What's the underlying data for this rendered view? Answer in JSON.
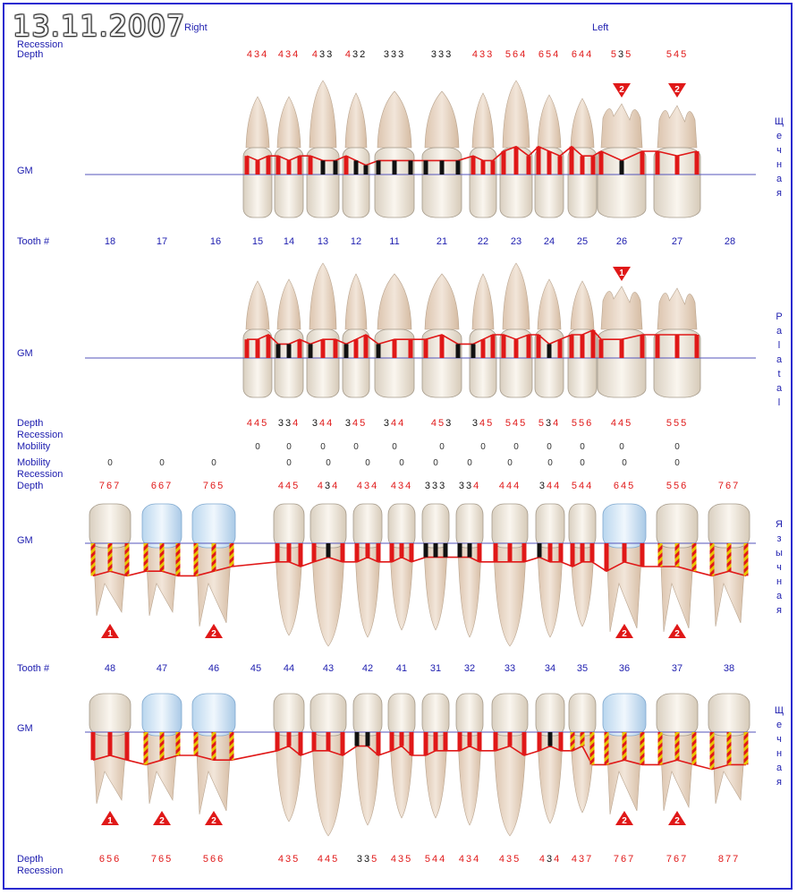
{
  "date": "13.11.2007",
  "header": {
    "right": "Right",
    "left": "Left"
  },
  "labels": {
    "recession": "Recession",
    "depth": "Depth",
    "gm": "GM",
    "tooth": "Tooth #",
    "mobility": "Mobility"
  },
  "side_labels": {
    "upper_buccal": "Щечная",
    "upper_palatal": "Palatal",
    "lower_lingual": "Язычная",
    "lower_buccal": "Щечная"
  },
  "colors": {
    "accent": "#2020b0",
    "red": "#e01818",
    "gum": "#e01818"
  },
  "upper": {
    "teeth": [
      "18",
      "17",
      "16",
      "15",
      "14",
      "13",
      "12",
      "11",
      "21",
      "22",
      "23",
      "24",
      "25",
      "26",
      "27",
      "28"
    ],
    "buccal_depth": [
      {
        "t": "15",
        "v": "434",
        "c": [
          "r",
          "r",
          "r"
        ]
      },
      {
        "t": "14",
        "v": "434",
        "c": [
          "r",
          "r",
          "r"
        ]
      },
      {
        "t": "13",
        "v": "433",
        "c": [
          "r",
          "k",
          "k"
        ]
      },
      {
        "t": "12",
        "v": "432",
        "c": [
          "r",
          "k",
          "k"
        ]
      },
      {
        "t": "11",
        "v": "333",
        "c": [
          "k",
          "k",
          "k"
        ]
      },
      {
        "t": "21",
        "v": "333",
        "c": [
          "k",
          "k",
          "k"
        ]
      },
      {
        "t": "22",
        "v": "433",
        "c": [
          "r",
          "r",
          "r"
        ]
      },
      {
        "t": "23",
        "v": "564",
        "c": [
          "r",
          "r",
          "r"
        ]
      },
      {
        "t": "24",
        "v": "654",
        "c": [
          "r",
          "r",
          "r"
        ]
      },
      {
        "t": "25",
        "v": "644",
        "c": [
          "r",
          "r",
          "r"
        ]
      },
      {
        "t": "26",
        "v": "535",
        "c": [
          "r",
          "k",
          "r"
        ]
      },
      {
        "t": "27",
        "v": "545",
        "c": [
          "r",
          "r",
          "r"
        ]
      }
    ],
    "buccal_furcation": [
      {
        "t": "26",
        "v": "2"
      },
      {
        "t": "27",
        "v": "2"
      }
    ],
    "palatal_furcation": [
      {
        "t": "26",
        "v": "1"
      }
    ],
    "palatal_depth": [
      {
        "t": "15",
        "v": "445",
        "c": [
          "r",
          "r",
          "r"
        ]
      },
      {
        "t": "14",
        "v": "334",
        "c": [
          "k",
          "k",
          "r"
        ]
      },
      {
        "t": "13",
        "v": "344",
        "c": [
          "k",
          "r",
          "r"
        ]
      },
      {
        "t": "12",
        "v": "345",
        "c": [
          "k",
          "r",
          "r"
        ]
      },
      {
        "t": "11",
        "v": "344",
        "c": [
          "k",
          "r",
          "r"
        ]
      },
      {
        "t": "21",
        "v": "453",
        "c": [
          "r",
          "r",
          "k"
        ]
      },
      {
        "t": "22",
        "v": "345",
        "c": [
          "k",
          "r",
          "r"
        ]
      },
      {
        "t": "23",
        "v": "545",
        "c": [
          "r",
          "r",
          "r"
        ]
      },
      {
        "t": "24",
        "v": "534",
        "c": [
          "r",
          "k",
          "r"
        ]
      },
      {
        "t": "25",
        "v": "556",
        "c": [
          "r",
          "r",
          "r"
        ]
      },
      {
        "t": "26",
        "v": "445",
        "c": [
          "r",
          "r",
          "r"
        ]
      },
      {
        "t": "27",
        "v": "555",
        "c": [
          "r",
          "r",
          "r"
        ]
      }
    ],
    "mobility": [
      {
        "t": "15",
        "v": "0"
      },
      {
        "t": "14",
        "v": "0"
      },
      {
        "t": "13",
        "v": "0"
      },
      {
        "t": "12",
        "v": "0"
      },
      {
        "t": "11",
        "v": "0"
      },
      {
        "t": "21",
        "v": "0"
      },
      {
        "t": "22",
        "v": "0"
      },
      {
        "t": "23",
        "v": "0"
      },
      {
        "t": "24",
        "v": "0"
      },
      {
        "t": "25",
        "v": "0"
      },
      {
        "t": "26",
        "v": "0"
      },
      {
        "t": "27",
        "v": "0"
      }
    ]
  },
  "lower": {
    "teeth": [
      "48",
      "47",
      "46",
      "45",
      "44",
      "43",
      "42",
      "41",
      "31",
      "32",
      "33",
      "34",
      "35",
      "36",
      "37",
      "38"
    ],
    "mobility": [
      {
        "t": "48",
        "v": "0"
      },
      {
        "t": "47",
        "v": "0"
      },
      {
        "t": "46",
        "v": "0"
      },
      {
        "t": "44",
        "v": "0"
      },
      {
        "t": "43",
        "v": "0"
      },
      {
        "t": "42",
        "v": "0"
      },
      {
        "t": "41",
        "v": "0"
      },
      {
        "t": "31",
        "v": "0"
      },
      {
        "t": "32",
        "v": "0"
      },
      {
        "t": "33",
        "v": "0"
      },
      {
        "t": "34",
        "v": "0"
      },
      {
        "t": "35",
        "v": "0"
      },
      {
        "t": "36",
        "v": "0"
      },
      {
        "t": "37",
        "v": "0"
      }
    ],
    "lingual_depth": [
      {
        "t": "48",
        "v": "767",
        "c": [
          "r",
          "r",
          "r"
        ]
      },
      {
        "t": "47",
        "v": "667",
        "c": [
          "r",
          "r",
          "r"
        ]
      },
      {
        "t": "46",
        "v": "765",
        "c": [
          "r",
          "r",
          "r"
        ]
      },
      {
        "t": "44",
        "v": "445",
        "c": [
          "r",
          "r",
          "r"
        ]
      },
      {
        "t": "43",
        "v": "434",
        "c": [
          "r",
          "k",
          "r"
        ]
      },
      {
        "t": "42",
        "v": "434",
        "c": [
          "r",
          "r",
          "r"
        ]
      },
      {
        "t": "41",
        "v": "434",
        "c": [
          "r",
          "r",
          "r"
        ]
      },
      {
        "t": "31",
        "v": "333",
        "c": [
          "k",
          "k",
          "k"
        ]
      },
      {
        "t": "32",
        "v": "334",
        "c": [
          "k",
          "k",
          "r"
        ]
      },
      {
        "t": "33",
        "v": "444",
        "c": [
          "r",
          "r",
          "r"
        ]
      },
      {
        "t": "34",
        "v": "344",
        "c": [
          "k",
          "r",
          "r"
        ]
      },
      {
        "t": "35",
        "v": "544",
        "c": [
          "r",
          "r",
          "r"
        ]
      },
      {
        "t": "36",
        "v": "645",
        "c": [
          "r",
          "r",
          "r"
        ]
      },
      {
        "t": "37",
        "v": "556",
        "c": [
          "r",
          "r",
          "r"
        ]
      },
      {
        "t": "38",
        "v": "767",
        "c": [
          "r",
          "r",
          "r"
        ]
      }
    ],
    "lingual_furcation": [
      {
        "t": "48",
        "v": "1"
      },
      {
        "t": "46",
        "v": "2"
      },
      {
        "t": "36",
        "v": "2"
      },
      {
        "t": "37",
        "v": "2"
      }
    ],
    "buccal_furcation": [
      {
        "t": "48",
        "v": "1"
      },
      {
        "t": "47",
        "v": "2"
      },
      {
        "t": "46",
        "v": "2"
      },
      {
        "t": "36",
        "v": "2"
      },
      {
        "t": "37",
        "v": "2"
      }
    ],
    "buccal_depth": [
      {
        "t": "48",
        "v": "656",
        "c": [
          "r",
          "r",
          "r"
        ]
      },
      {
        "t": "47",
        "v": "765",
        "c": [
          "r",
          "r",
          "r"
        ]
      },
      {
        "t": "46",
        "v": "566",
        "c": [
          "r",
          "r",
          "r"
        ]
      },
      {
        "t": "44",
        "v": "435",
        "c": [
          "r",
          "r",
          "r"
        ]
      },
      {
        "t": "43",
        "v": "445",
        "c": [
          "r",
          "r",
          "r"
        ]
      },
      {
        "t": "42",
        "v": "335",
        "c": [
          "k",
          "k",
          "r"
        ]
      },
      {
        "t": "41",
        "v": "435",
        "c": [
          "r",
          "r",
          "r"
        ]
      },
      {
        "t": "31",
        "v": "544",
        "c": [
          "r",
          "r",
          "r"
        ]
      },
      {
        "t": "32",
        "v": "434",
        "c": [
          "r",
          "r",
          "r"
        ]
      },
      {
        "t": "33",
        "v": "435",
        "c": [
          "r",
          "r",
          "r"
        ]
      },
      {
        "t": "34",
        "v": "434",
        "c": [
          "r",
          "k",
          "r"
        ]
      },
      {
        "t": "35",
        "v": "437",
        "c": [
          "r",
          "r",
          "r"
        ]
      },
      {
        "t": "36",
        "v": "767",
        "c": [
          "r",
          "r",
          "r"
        ]
      },
      {
        "t": "37",
        "v": "767",
        "c": [
          "r",
          "r",
          "r"
        ]
      },
      {
        "t": "38",
        "v": "877",
        "c": [
          "r",
          "r",
          "r"
        ]
      }
    ]
  }
}
